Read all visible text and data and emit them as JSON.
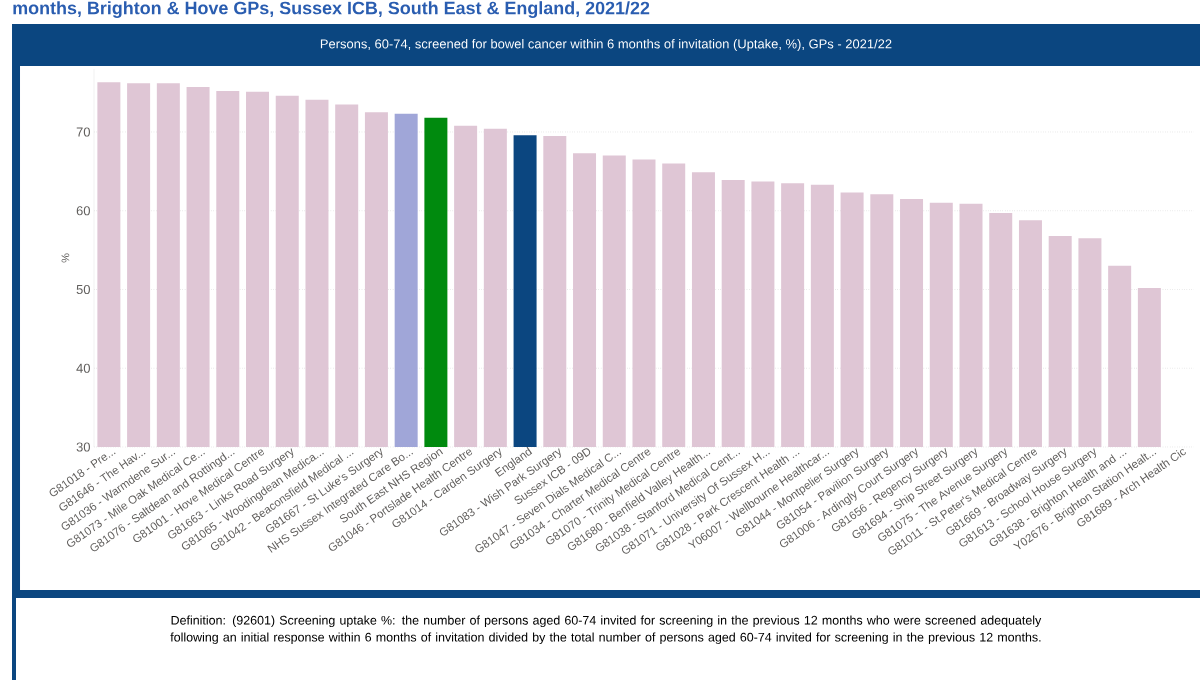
{
  "chart_data": {
    "type": "bar",
    "title": "months, Brighton & Hove GPs, Sussex ICB, South East & England, 2021/22",
    "subtitle": "Persons, 60-74, screened for bowel cancer within 6 months of invitation (Uptake, %), GPs -  2021/22",
    "ylabel": "%",
    "categories": [
      "G81018 - Pre...",
      "G81646 - The Hav...",
      "G81036 - Warmdene Sur...",
      "G81073 - Mile Oak Medical Ce...",
      "G81076 - Saltdean and Rottingd...",
      "G81001 - Hove Medical Centre",
      "G81663 - Links Road Surgery",
      "G81065 - Woodingdean Medica...",
      "G81042 - Beaconsfield Medical ...",
      "G81667 - St Luke's Surgery",
      "NHS Sussex Integrated Care Bo...",
      "South East NHS Region",
      "G81046 - Portslade Health Centre",
      "G81014 - Carden Surgery",
      "England",
      "G81083 - Wish Park Surgery",
      "Sussex ICB - 09D",
      "G81047 - Seven Dials Medical C...",
      "G81034 - Charter Medical Centre",
      "G81070 - Trinity Medical Centre",
      "G81680 - Benfield Valley Health...",
      "G81038 - Stanford Medical Cent...",
      "G81071 - University Of Sussex H...",
      "G81028 - Park Crescent Health ...",
      "Y06007 - Wellbourne Healthcar...",
      "G81044 - Montpelier Surgery",
      "G81054 - Pavilion Surgery",
      "G81006 - Ardingly Court Surgery",
      "G81656 - Regency Surgery",
      "G81694 - Ship Street Surgery",
      "G81075 - The Avenue Surgery",
      "G81011 - St.Peter's Medical Centre",
      "G81669 - Broadway Surgery",
      "G81613 - School House Surgery",
      "G81638 - Brighton Health and ...",
      "Y02676 - Brighton Station Healt...",
      "G81689 - Arch Health Cic"
    ],
    "values": [
      76.3,
      76.2,
      76.2,
      75.7,
      75.2,
      75.1,
      74.6,
      74.1,
      73.5,
      72.5,
      72.3,
      71.8,
      70.8,
      70.4,
      69.6,
      69.5,
      67.3,
      67.0,
      66.5,
      66.0,
      64.9,
      63.9,
      63.7,
      63.5,
      63.3,
      62.3,
      62.1,
      61.5,
      61.0,
      60.9,
      59.7,
      58.8,
      56.8,
      56.5,
      53.0,
      50.2,
      null
    ],
    "colors": [
      "#dfc6d5",
      "#dfc6d5",
      "#dfc6d5",
      "#dfc6d5",
      "#dfc6d5",
      "#dfc6d5",
      "#dfc6d5",
      "#dfc6d5",
      "#dfc6d5",
      "#dfc6d5",
      "#a0a6d8",
      "#008a0e",
      "#dfc6d5",
      "#dfc6d5",
      "#0b4680",
      "#dfc6d5",
      "#dfc6d5",
      "#dfc6d5",
      "#dfc6d5",
      "#dfc6d5",
      "#dfc6d5",
      "#dfc6d5",
      "#dfc6d5",
      "#dfc6d5",
      "#dfc6d5",
      "#dfc6d5",
      "#dfc6d5",
      "#dfc6d5",
      "#dfc6d5",
      "#dfc6d5",
      "#dfc6d5",
      "#dfc6d5",
      "#dfc6d5",
      "#dfc6d5",
      "#dfc6d5",
      "#dfc6d5",
      "#dfc6d5"
    ],
    "ylim": [
      30,
      78
    ],
    "yticks": [
      30,
      40,
      50,
      60,
      70
    ],
    "grid": "y",
    "annotations": [
      "Definition: (92601) Screening uptake %: the number of persons aged 60-74 invited for screening in the previous 12 months who were screened adequately following an initial response within 6 months of invitation divided by the total number of persons aged 60-74 invited for screening in the previous 12 months."
    ]
  }
}
